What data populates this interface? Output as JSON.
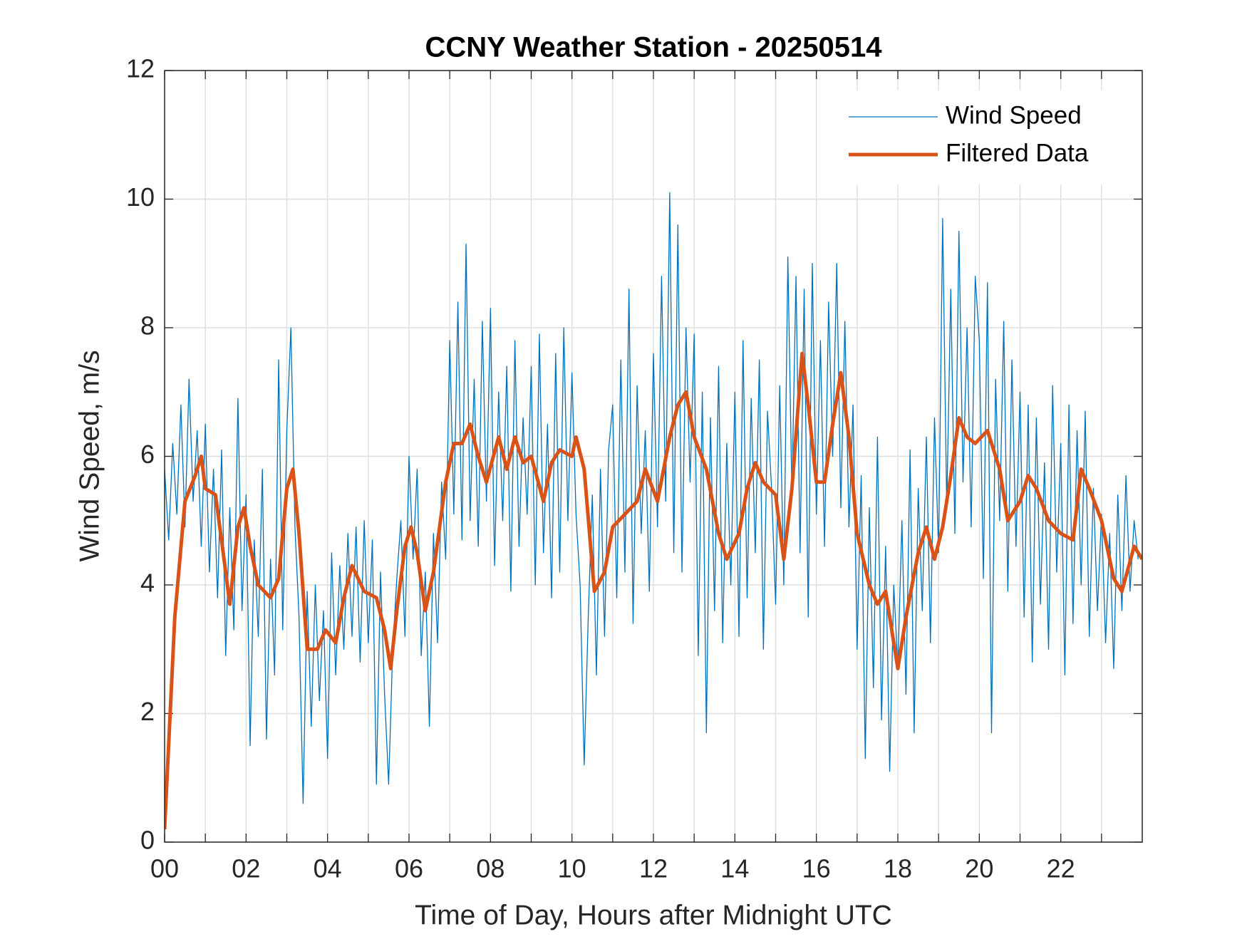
{
  "chart_data": {
    "type": "line",
    "title": "CCNY Weather Station - 20250514",
    "x_label": "Time of Day, Hours after Midnight UTC",
    "y_label": "Wind Speed, m/s",
    "xlim": [
      0,
      24
    ],
    "ylim": [
      0,
      12
    ],
    "xticks": [
      {
        "value": 0,
        "label": "00"
      },
      {
        "value": 2,
        "label": "02"
      },
      {
        "value": 4,
        "label": "04"
      },
      {
        "value": 6,
        "label": "06"
      },
      {
        "value": 8,
        "label": "08"
      },
      {
        "value": 10,
        "label": "10"
      },
      {
        "value": 12,
        "label": "12"
      },
      {
        "value": 14,
        "label": "14"
      },
      {
        "value": 16,
        "label": "16"
      },
      {
        "value": 18,
        "label": "18"
      },
      {
        "value": 20,
        "label": "20"
      },
      {
        "value": 22,
        "label": "22"
      }
    ],
    "xminorticks": [
      1,
      3,
      5,
      7,
      9,
      11,
      13,
      15,
      17,
      19,
      21,
      23
    ],
    "yticks": [
      0,
      2,
      4,
      6,
      8,
      10,
      12
    ],
    "grid": true,
    "legend": "upper-right",
    "series": [
      {
        "name": "Wind Speed",
        "color": "#0072bd",
        "line_width": 1.3,
        "x": [
          0,
          0.1,
          0.2,
          0.3,
          0.4,
          0.5,
          0.6,
          0.7,
          0.8,
          0.9,
          1,
          1.1,
          1.2,
          1.3,
          1.4,
          1.5,
          1.6,
          1.7,
          1.8,
          1.9,
          2,
          2.1,
          2.2,
          2.3,
          2.4,
          2.5,
          2.6,
          2.7,
          2.8,
          2.9,
          3,
          3.1,
          3.2,
          3.3,
          3.4,
          3.5,
          3.6,
          3.7,
          3.8,
          3.9,
          4,
          4.1,
          4.2,
          4.3,
          4.4,
          4.5,
          4.6,
          4.7,
          4.8,
          4.9,
          5,
          5.1,
          5.2,
          5.3,
          5.4,
          5.5,
          5.6,
          5.7,
          5.8,
          5.9,
          6,
          6.1,
          6.2,
          6.3,
          6.4,
          6.5,
          6.6,
          6.7,
          6.8,
          6.9,
          7,
          7.1,
          7.2,
          7.3,
          7.4,
          7.5,
          7.6,
          7.7,
          7.8,
          7.9,
          8,
          8.1,
          8.2,
          8.3,
          8.4,
          8.5,
          8.6,
          8.7,
          8.8,
          8.9,
          9,
          9.1,
          9.2,
          9.3,
          9.4,
          9.5,
          9.6,
          9.7,
          9.8,
          9.9,
          10,
          10.1,
          10.2,
          10.3,
          10.4,
          10.5,
          10.6,
          10.7,
          10.8,
          10.9,
          11,
          11.1,
          11.2,
          11.3,
          11.4,
          11.5,
          11.6,
          11.7,
          11.8,
          11.9,
          12,
          12.1,
          12.2,
          12.3,
          12.4,
          12.5,
          12.6,
          12.7,
          12.8,
          12.9,
          13,
          13.1,
          13.2,
          13.3,
          13.4,
          13.5,
          13.6,
          13.7,
          13.8,
          13.9,
          14,
          14.1,
          14.2,
          14.3,
          14.4,
          14.5,
          14.6,
          14.7,
          14.8,
          14.9,
          15,
          15.1,
          15.2,
          15.3,
          15.4,
          15.5,
          15.6,
          15.7,
          15.8,
          15.9,
          16,
          16.1,
          16.2,
          16.3,
          16.4,
          16.5,
          16.6,
          16.7,
          16.8,
          16.9,
          17,
          17.1,
          17.2,
          17.3,
          17.4,
          17.5,
          17.6,
          17.7,
          17.8,
          17.9,
          18,
          18.1,
          18.2,
          18.3,
          18.4,
          18.5,
          18.6,
          18.7,
          18.8,
          18.9,
          19,
          19.1,
          19.2,
          19.3,
          19.4,
          19.5,
          19.6,
          19.7,
          19.8,
          19.9,
          20,
          20.1,
          20.2,
          20.3,
          20.4,
          20.5,
          20.6,
          20.7,
          20.8,
          20.9,
          21,
          21.1,
          21.2,
          21.3,
          21.4,
          21.5,
          21.6,
          21.7,
          21.8,
          21.9,
          22,
          22.1,
          22.2,
          22.3,
          22.4,
          22.5,
          22.6,
          22.7,
          22.8,
          22.9,
          23,
          23.1,
          23.2,
          23.3,
          23.4,
          23.5,
          23.6,
          23.7,
          23.8,
          23.9
        ],
        "values": [
          5.8,
          4.7,
          6.2,
          5.1,
          6.8,
          4.9,
          7.2,
          5.3,
          6.4,
          4.6,
          6.5,
          4.2,
          5.8,
          3.8,
          6.1,
          2.9,
          5.2,
          3.3,
          6.9,
          3.6,
          5.4,
          1.5,
          4.7,
          3.2,
          5.8,
          1.6,
          4.4,
          2.6,
          7.5,
          3.3,
          6.4,
          8.0,
          4.9,
          3.5,
          0.6,
          3.9,
          1.8,
          4.0,
          2.2,
          3.6,
          1.3,
          4.5,
          2.6,
          4.3,
          3.0,
          4.8,
          3.2,
          4.9,
          2.8,
          5.0,
          3.1,
          4.7,
          0.9,
          4.2,
          2.3,
          0.9,
          3.0,
          4.1,
          5.0,
          3.2,
          6.0,
          4.4,
          5.8,
          2.9,
          4.2,
          1.8,
          4.8,
          3.1,
          5.6,
          4.4,
          7.8,
          5.1,
          8.4,
          4.7,
          9.3,
          5.0,
          7.2,
          4.6,
          8.1,
          5.3,
          8.3,
          4.3,
          7.0,
          5.0,
          7.4,
          3.9,
          7.8,
          4.6,
          6.6,
          5.1,
          7.4,
          4.0,
          7.9,
          4.5,
          6.5,
          3.8,
          7.6,
          4.2,
          8.0,
          5.0,
          7.3,
          5.1,
          4.0,
          1.2,
          3.5,
          5.4,
          2.6,
          5.8,
          3.2,
          6.1,
          6.8,
          3.8,
          7.5,
          4.2,
          8.6,
          3.4,
          7.1,
          4.8,
          6.4,
          3.9,
          7.6,
          4.9,
          8.8,
          5.3,
          10.1,
          4.5,
          9.6,
          4.2,
          8.0,
          5.6,
          7.9,
          2.9,
          7.0,
          1.7,
          6.6,
          3.6,
          7.4,
          3.1,
          6.2,
          4.0,
          7.0,
          3.2,
          7.8,
          3.8,
          6.9,
          4.5,
          7.5,
          3.0,
          6.7,
          5.5,
          3.7,
          7.1,
          4.0,
          9.1,
          5.4,
          8.8,
          4.5,
          8.6,
          3.5,
          9.0,
          5.1,
          7.8,
          4.6,
          8.4,
          6.0,
          9.0,
          5.2,
          8.1,
          4.9,
          6.8,
          3.0,
          5.7,
          1.3,
          5.2,
          2.4,
          6.3,
          1.9,
          4.6,
          1.1,
          4.0,
          2.7,
          5.0,
          2.3,
          6.1,
          1.7,
          5.5,
          3.6,
          6.3,
          3.1,
          6.6,
          4.5,
          9.7,
          5.2,
          8.6,
          4.8,
          9.5,
          5.6,
          8.0,
          4.9,
          8.8,
          7.8,
          4.1,
          8.7,
          1.7,
          7.2,
          5.0,
          8.1,
          3.9,
          7.5,
          4.6,
          7.0,
          3.5,
          6.8,
          2.8,
          6.6,
          3.7,
          5.9,
          3.0,
          7.1,
          4.2,
          6.2,
          2.6,
          6.8,
          3.4,
          6.4,
          4.0,
          6.7,
          3.2,
          5.5,
          3.6,
          5.1,
          3.1,
          4.8,
          2.7,
          5.4,
          3.6,
          5.7,
          3.9,
          5.0,
          4.4
        ]
      },
      {
        "name": "Filtered Data",
        "color": "#d95319",
        "line_width": 5,
        "x": [
          0,
          0.25,
          0.5,
          0.75,
          0.9,
          1,
          1.25,
          1.5,
          1.6,
          1.8,
          1.95,
          2.1,
          2.3,
          2.6,
          2.8,
          3.0,
          3.15,
          3.3,
          3.5,
          3.75,
          3.95,
          4.2,
          4.4,
          4.6,
          4.9,
          5.2,
          5.4,
          5.55,
          5.7,
          5.9,
          6.05,
          6.2,
          6.4,
          6.6,
          6.9,
          7.1,
          7.3,
          7.5,
          7.7,
          7.9,
          8.2,
          8.4,
          8.6,
          8.8,
          9.0,
          9.3,
          9.5,
          9.7,
          10.0,
          10.1,
          10.3,
          10.55,
          10.8,
          11.0,
          11.3,
          11.6,
          11.8,
          12.1,
          12.4,
          12.6,
          12.8,
          13.0,
          13.3,
          13.6,
          13.8,
          14.1,
          14.3,
          14.5,
          14.7,
          15.0,
          15.2,
          15.4,
          15.65,
          15.8,
          16.0,
          16.2,
          16.4,
          16.6,
          16.8,
          17.0,
          17.3,
          17.5,
          17.7,
          18.0,
          18.2,
          18.5,
          18.7,
          18.9,
          19.1,
          19.3,
          19.5,
          19.7,
          19.9,
          20.2,
          20.5,
          20.7,
          21.0,
          21.2,
          21.4,
          21.7,
          22.0,
          22.3,
          22.5,
          22.7,
          23.0,
          23.3,
          23.5,
          23.8,
          24
        ],
        "values": [
          0.2,
          3.5,
          5.3,
          5.7,
          6.0,
          5.5,
          5.4,
          4.2,
          3.7,
          4.9,
          5.2,
          4.6,
          4.0,
          3.8,
          4.1,
          5.5,
          5.8,
          4.8,
          3.0,
          3.0,
          3.3,
          3.1,
          3.8,
          4.3,
          3.9,
          3.8,
          3.3,
          2.7,
          3.6,
          4.6,
          4.9,
          4.5,
          3.6,
          4.2,
          5.6,
          6.2,
          6.2,
          6.5,
          6.0,
          5.6,
          6.3,
          5.8,
          6.3,
          5.9,
          6.0,
          5.3,
          5.9,
          6.1,
          6.0,
          6.3,
          5.8,
          3.9,
          4.2,
          4.9,
          5.1,
          5.3,
          5.8,
          5.3,
          6.3,
          6.8,
          7.0,
          6.3,
          5.8,
          4.8,
          4.4,
          4.8,
          5.5,
          5.9,
          5.6,
          5.4,
          4.4,
          5.5,
          7.6,
          6.8,
          5.6,
          5.6,
          6.5,
          7.3,
          6.3,
          4.8,
          4.0,
          3.7,
          3.9,
          2.7,
          3.5,
          4.5,
          4.9,
          4.4,
          4.9,
          5.7,
          6.6,
          6.3,
          6.2,
          6.4,
          5.8,
          5.0,
          5.3,
          5.7,
          5.5,
          5.0,
          4.8,
          4.7,
          5.8,
          5.5,
          5.0,
          4.1,
          3.9,
          4.6,
          4.4
        ]
      }
    ]
  }
}
